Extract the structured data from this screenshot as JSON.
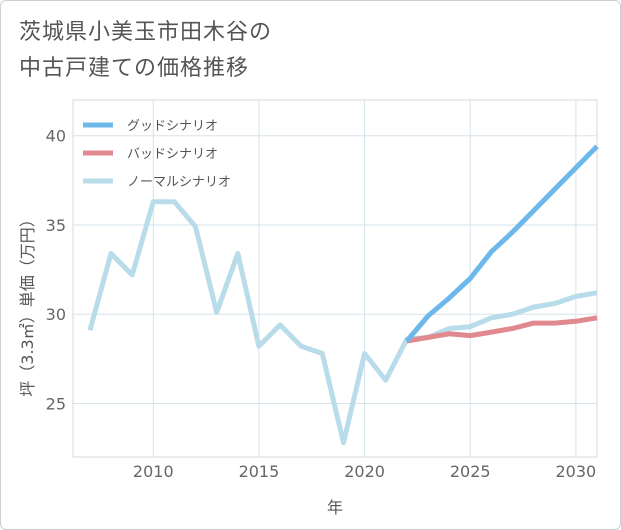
{
  "title": {
    "line1": "茨城県小美玉市田木谷の",
    "line2": "中古戸建ての価格推移"
  },
  "chart_data": {
    "type": "line",
    "xlabel": "年",
    "ylabel": "坪（3.3㎡）単価（万円）",
    "xlim": [
      2006.2,
      2031
    ],
    "ylim": [
      22,
      42
    ],
    "xticks": [
      2010,
      2015,
      2020,
      2025,
      2030
    ],
    "yticks": [
      25,
      30,
      35,
      40
    ],
    "legend_position": "top-left",
    "series": [
      {
        "name": "グッドシナリオ",
        "color": "#6cb8ea",
        "x": [
          2022,
          2023,
          2024,
          2025,
          2026,
          2027,
          2028,
          2029,
          2030,
          2031
        ],
        "values": [
          28.5,
          29.9,
          30.9,
          32.0,
          33.5,
          34.6,
          35.8,
          37.0,
          38.2,
          39.4
        ]
      },
      {
        "name": "バッドシナリオ",
        "color": "#e0898f",
        "x": [
          2022,
          2023,
          2024,
          2025,
          2026,
          2027,
          2028,
          2029,
          2030,
          2031
        ],
        "values": [
          28.5,
          28.7,
          28.9,
          28.8,
          29.0,
          29.2,
          29.5,
          29.5,
          29.6,
          29.8
        ]
      },
      {
        "name": "ノーマルシナリオ",
        "color": "#b9dcea",
        "x": [
          2007,
          2008,
          2009,
          2010,
          2011,
          2012,
          2013,
          2014,
          2015,
          2016,
          2017,
          2018,
          2019,
          2020,
          2021,
          2022,
          2023,
          2024,
          2025,
          2026,
          2027,
          2028,
          2029,
          2030,
          2031
        ],
        "values": [
          29.1,
          33.4,
          32.2,
          36.3,
          36.3,
          34.9,
          30.1,
          33.4,
          28.2,
          29.4,
          28.2,
          27.8,
          22.8,
          27.8,
          26.3,
          28.6,
          28.7,
          29.2,
          29.3,
          29.8,
          30.0,
          30.4,
          30.6,
          31.0,
          31.2
        ]
      }
    ]
  }
}
